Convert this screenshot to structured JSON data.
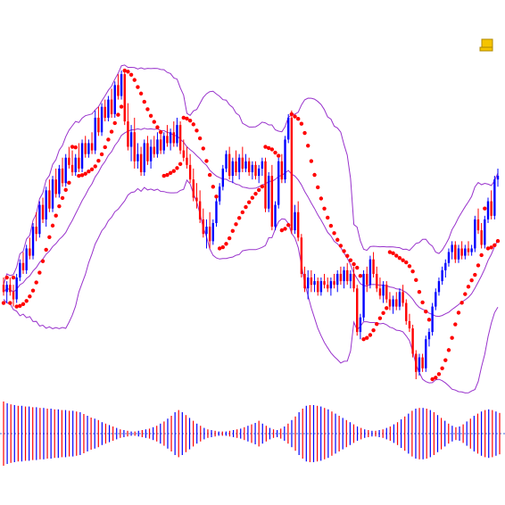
{
  "colors": {
    "background": "#ffffff",
    "up_candle": "#0000ff",
    "down_candle": "#ff0000",
    "bollinger": "#9933cc",
    "sar": "#ff0000",
    "histogram_up": "#0000ff",
    "histogram_down": "#ff0000",
    "zero_line": "#4a6bd8",
    "icon": "#f5c400"
  },
  "icons": {
    "corner_icon": "scroll-note-icon"
  },
  "chart_data": [
    {
      "type": "candlestick",
      "title": "",
      "xlabel": "",
      "ylabel": "",
      "grid": false,
      "ylim": [
        0,
        100
      ],
      "overlays": [
        "bollinger-bands",
        "parabolic-sar"
      ],
      "candles": [
        {
          "o": 26,
          "h": 28,
          "l": 23,
          "c": 24
        },
        {
          "o": 24,
          "h": 27,
          "l": 21,
          "c": 26
        },
        {
          "o": 26,
          "h": 28,
          "l": 23,
          "c": 24
        },
        {
          "o": 24,
          "h": 26,
          "l": 20,
          "c": 22
        },
        {
          "o": 22,
          "h": 29,
          "l": 21,
          "c": 28
        },
        {
          "o": 28,
          "h": 33,
          "l": 27,
          "c": 32
        },
        {
          "o": 32,
          "h": 35,
          "l": 29,
          "c": 30
        },
        {
          "o": 30,
          "h": 37,
          "l": 29,
          "c": 36
        },
        {
          "o": 36,
          "h": 39,
          "l": 33,
          "c": 34
        },
        {
          "o": 34,
          "h": 43,
          "l": 33,
          "c": 42
        },
        {
          "o": 42,
          "h": 46,
          "l": 38,
          "c": 40
        },
        {
          "o": 40,
          "h": 49,
          "l": 39,
          "c": 48
        },
        {
          "o": 48,
          "h": 50,
          "l": 43,
          "c": 44
        },
        {
          "o": 44,
          "h": 53,
          "l": 42,
          "c": 52
        },
        {
          "o": 52,
          "h": 55,
          "l": 46,
          "c": 47
        },
        {
          "o": 47,
          "h": 56,
          "l": 46,
          "c": 55
        },
        {
          "o": 55,
          "h": 58,
          "l": 50,
          "c": 51
        },
        {
          "o": 51,
          "h": 59,
          "l": 50,
          "c": 58
        },
        {
          "o": 58,
          "h": 61,
          "l": 53,
          "c": 54
        },
        {
          "o": 54,
          "h": 62,
          "l": 53,
          "c": 61
        },
        {
          "o": 61,
          "h": 64,
          "l": 58,
          "c": 59
        },
        {
          "o": 59,
          "h": 63,
          "l": 56,
          "c": 57
        },
        {
          "o": 57,
          "h": 62,
          "l": 56,
          "c": 61
        },
        {
          "o": 61,
          "h": 65,
          "l": 57,
          "c": 58
        },
        {
          "o": 58,
          "h": 66,
          "l": 57,
          "c": 65
        },
        {
          "o": 65,
          "h": 67,
          "l": 61,
          "c": 62
        },
        {
          "o": 62,
          "h": 66,
          "l": 61,
          "c": 65
        },
        {
          "o": 65,
          "h": 68,
          "l": 62,
          "c": 63
        },
        {
          "o": 63,
          "h": 74,
          "l": 62,
          "c": 72
        },
        {
          "o": 72,
          "h": 75,
          "l": 67,
          "c": 68
        },
        {
          "o": 68,
          "h": 76,
          "l": 67,
          "c": 75
        },
        {
          "o": 75,
          "h": 77,
          "l": 71,
          "c": 72
        },
        {
          "o": 72,
          "h": 78,
          "l": 71,
          "c": 77
        },
        {
          "o": 77,
          "h": 80,
          "l": 72,
          "c": 73
        },
        {
          "o": 73,
          "h": 82,
          "l": 72,
          "c": 81
        },
        {
          "o": 81,
          "h": 84,
          "l": 77,
          "c": 78
        },
        {
          "o": 78,
          "h": 85,
          "l": 77,
          "c": 84
        },
        {
          "o": 84,
          "h": 85,
          "l": 70,
          "c": 71
        },
        {
          "o": 71,
          "h": 76,
          "l": 63,
          "c": 64
        },
        {
          "o": 64,
          "h": 70,
          "l": 60,
          "c": 68
        },
        {
          "o": 68,
          "h": 72,
          "l": 58,
          "c": 60
        },
        {
          "o": 60,
          "h": 65,
          "l": 58,
          "c": 62
        },
        {
          "o": 62,
          "h": 64,
          "l": 56,
          "c": 57
        },
        {
          "o": 57,
          "h": 66,
          "l": 56,
          "c": 65
        },
        {
          "o": 65,
          "h": 67,
          "l": 59,
          "c": 60
        },
        {
          "o": 60,
          "h": 66,
          "l": 58,
          "c": 64
        },
        {
          "o": 64,
          "h": 67,
          "l": 61,
          "c": 62
        },
        {
          "o": 62,
          "h": 68,
          "l": 61,
          "c": 66
        },
        {
          "o": 66,
          "h": 68,
          "l": 62,
          "c": 63
        },
        {
          "o": 63,
          "h": 68,
          "l": 62,
          "c": 67
        },
        {
          "o": 67,
          "h": 70,
          "l": 64,
          "c": 65
        },
        {
          "o": 65,
          "h": 69,
          "l": 63,
          "c": 68
        },
        {
          "o": 68,
          "h": 71,
          "l": 64,
          "c": 65
        },
        {
          "o": 65,
          "h": 72,
          "l": 64,
          "c": 70
        },
        {
          "o": 70,
          "h": 71,
          "l": 62,
          "c": 63
        },
        {
          "o": 63,
          "h": 66,
          "l": 60,
          "c": 61
        },
        {
          "o": 61,
          "h": 64,
          "l": 58,
          "c": 59
        },
        {
          "o": 59,
          "h": 62,
          "l": 54,
          "c": 55
        },
        {
          "o": 55,
          "h": 58,
          "l": 49,
          "c": 50
        },
        {
          "o": 50,
          "h": 54,
          "l": 47,
          "c": 49
        },
        {
          "o": 49,
          "h": 52,
          "l": 43,
          "c": 44
        },
        {
          "o": 44,
          "h": 47,
          "l": 39,
          "c": 40
        },
        {
          "o": 40,
          "h": 44,
          "l": 36,
          "c": 42
        },
        {
          "o": 42,
          "h": 46,
          "l": 36,
          "c": 38
        },
        {
          "o": 38,
          "h": 44,
          "l": 37,
          "c": 43
        },
        {
          "o": 43,
          "h": 50,
          "l": 42,
          "c": 49
        },
        {
          "o": 49,
          "h": 54,
          "l": 48,
          "c": 53
        },
        {
          "o": 53,
          "h": 59,
          "l": 52,
          "c": 58
        },
        {
          "o": 58,
          "h": 63,
          "l": 57,
          "c": 62
        },
        {
          "o": 62,
          "h": 64,
          "l": 55,
          "c": 56
        },
        {
          "o": 56,
          "h": 61,
          "l": 54,
          "c": 60
        },
        {
          "o": 60,
          "h": 63,
          "l": 56,
          "c": 57
        },
        {
          "o": 57,
          "h": 62,
          "l": 55,
          "c": 61
        },
        {
          "o": 61,
          "h": 64,
          "l": 57,
          "c": 58
        },
        {
          "o": 58,
          "h": 62,
          "l": 57,
          "c": 60
        },
        {
          "o": 60,
          "h": 61,
          "l": 56,
          "c": 57
        },
        {
          "o": 57,
          "h": 60,
          "l": 55,
          "c": 59
        },
        {
          "o": 59,
          "h": 60,
          "l": 55,
          "c": 56
        },
        {
          "o": 56,
          "h": 59,
          "l": 54,
          "c": 58
        },
        {
          "o": 58,
          "h": 61,
          "l": 56,
          "c": 60
        },
        {
          "o": 60,
          "h": 61,
          "l": 46,
          "c": 47
        },
        {
          "o": 47,
          "h": 57,
          "l": 46,
          "c": 56
        },
        {
          "o": 56,
          "h": 59,
          "l": 41,
          "c": 42
        },
        {
          "o": 42,
          "h": 49,
          "l": 41,
          "c": 48
        },
        {
          "o": 48,
          "h": 61,
          "l": 47,
          "c": 60
        },
        {
          "o": 60,
          "h": 62,
          "l": 54,
          "c": 55
        },
        {
          "o": 55,
          "h": 67,
          "l": 54,
          "c": 66
        },
        {
          "o": 66,
          "h": 73,
          "l": 65,
          "c": 72
        },
        {
          "o": 72,
          "h": 74,
          "l": 40,
          "c": 41
        },
        {
          "o": 41,
          "h": 48,
          "l": 40,
          "c": 46
        },
        {
          "o": 46,
          "h": 49,
          "l": 38,
          "c": 39
        },
        {
          "o": 39,
          "h": 40,
          "l": 28,
          "c": 29
        },
        {
          "o": 29,
          "h": 31,
          "l": 24,
          "c": 25
        },
        {
          "o": 25,
          "h": 30,
          "l": 22,
          "c": 28
        },
        {
          "o": 28,
          "h": 30,
          "l": 24,
          "c": 26
        },
        {
          "o": 26,
          "h": 29,
          "l": 24,
          "c": 27
        },
        {
          "o": 27,
          "h": 28,
          "l": 23,
          "c": 24
        },
        {
          "o": 24,
          "h": 28,
          "l": 23,
          "c": 27
        },
        {
          "o": 27,
          "h": 29,
          "l": 25,
          "c": 26
        },
        {
          "o": 26,
          "h": 28,
          "l": 24,
          "c": 25
        },
        {
          "o": 25,
          "h": 28,
          "l": 23,
          "c": 27
        },
        {
          "o": 27,
          "h": 29,
          "l": 25,
          "c": 26
        },
        {
          "o": 26,
          "h": 30,
          "l": 24,
          "c": 29
        },
        {
          "o": 29,
          "h": 31,
          "l": 26,
          "c": 27
        },
        {
          "o": 27,
          "h": 31,
          "l": 25,
          "c": 30
        },
        {
          "o": 30,
          "h": 32,
          "l": 26,
          "c": 27
        },
        {
          "o": 27,
          "h": 30,
          "l": 25,
          "c": 29
        },
        {
          "o": 29,
          "h": 31,
          "l": 24,
          "c": 25
        },
        {
          "o": 25,
          "h": 26,
          "l": 12,
          "c": 13
        },
        {
          "o": 13,
          "h": 18,
          "l": 11,
          "c": 17
        },
        {
          "o": 17,
          "h": 30,
          "l": 16,
          "c": 29
        },
        {
          "o": 29,
          "h": 31,
          "l": 24,
          "c": 26
        },
        {
          "o": 26,
          "h": 34,
          "l": 25,
          "c": 33
        },
        {
          "o": 33,
          "h": 35,
          "l": 28,
          "c": 29
        },
        {
          "o": 29,
          "h": 31,
          "l": 24,
          "c": 25
        },
        {
          "o": 25,
          "h": 28,
          "l": 22,
          "c": 23
        },
        {
          "o": 23,
          "h": 27,
          "l": 21,
          "c": 26
        },
        {
          "o": 26,
          "h": 27,
          "l": 21,
          "c": 22
        },
        {
          "o": 22,
          "h": 24,
          "l": 19,
          "c": 20
        },
        {
          "o": 20,
          "h": 23,
          "l": 18,
          "c": 22
        },
        {
          "o": 22,
          "h": 24,
          "l": 19,
          "c": 20
        },
        {
          "o": 20,
          "h": 25,
          "l": 19,
          "c": 24
        },
        {
          "o": 24,
          "h": 26,
          "l": 20,
          "c": 21
        },
        {
          "o": 21,
          "h": 22,
          "l": 15,
          "c": 16
        },
        {
          "o": 16,
          "h": 18,
          "l": 13,
          "c": 14
        },
        {
          "o": 14,
          "h": 15,
          "l": 6,
          "c": 7
        },
        {
          "o": 7,
          "h": 8,
          "l": 0,
          "c": 2
        },
        {
          "o": 2,
          "h": 7,
          "l": 1,
          "c": 6
        },
        {
          "o": 6,
          "h": 7,
          "l": 2,
          "c": 3
        },
        {
          "o": 3,
          "h": 12,
          "l": 2,
          "c": 11
        },
        {
          "o": 11,
          "h": 14,
          "l": 9,
          "c": 13
        },
        {
          "o": 13,
          "h": 21,
          "l": 12,
          "c": 20
        },
        {
          "o": 20,
          "h": 25,
          "l": 19,
          "c": 24
        },
        {
          "o": 24,
          "h": 28,
          "l": 23,
          "c": 27
        },
        {
          "o": 27,
          "h": 31,
          "l": 26,
          "c": 30
        },
        {
          "o": 30,
          "h": 33,
          "l": 28,
          "c": 32
        },
        {
          "o": 32,
          "h": 36,
          "l": 31,
          "c": 35
        },
        {
          "o": 35,
          "h": 38,
          "l": 33,
          "c": 37
        },
        {
          "o": 37,
          "h": 38,
          "l": 32,
          "c": 33
        },
        {
          "o": 33,
          "h": 37,
          "l": 32,
          "c": 36
        },
        {
          "o": 36,
          "h": 38,
          "l": 33,
          "c": 34
        },
        {
          "o": 34,
          "h": 37,
          "l": 33,
          "c": 36
        },
        {
          "o": 36,
          "h": 38,
          "l": 34,
          "c": 35
        },
        {
          "o": 35,
          "h": 37,
          "l": 34,
          "c": 36
        },
        {
          "o": 36,
          "h": 45,
          "l": 35,
          "c": 44
        },
        {
          "o": 44,
          "h": 47,
          "l": 40,
          "c": 41
        },
        {
          "o": 41,
          "h": 43,
          "l": 36,
          "c": 37
        },
        {
          "o": 37,
          "h": 45,
          "l": 36,
          "c": 44
        },
        {
          "o": 44,
          "h": 50,
          "l": 43,
          "c": 49
        },
        {
          "o": 49,
          "h": 52,
          "l": 44,
          "c": 45
        },
        {
          "o": 45,
          "h": 56,
          "l": 44,
          "c": 55
        },
        {
          "o": 55,
          "h": 58,
          "l": 53,
          "c": 56
        }
      ]
    },
    {
      "type": "bar",
      "title": "",
      "xlabel": "",
      "ylabel": "",
      "grid": false,
      "ylim": [
        -1,
        1
      ],
      "zero_line": true,
      "values": [
        -0.9,
        0.85,
        -0.82,
        0.8,
        -0.78,
        0.78,
        -0.76,
        0.76,
        -0.74,
        0.74,
        -0.72,
        0.72,
        -0.7,
        0.7,
        -0.68,
        0.68,
        -0.66,
        0.66,
        -0.64,
        0.64,
        -0.62,
        0.6,
        -0.55,
        0.5,
        -0.45,
        0.42,
        -0.38,
        0.32,
        -0.28,
        0.24,
        -0.2,
        0.16,
        -0.12,
        0.1,
        -0.08,
        0.06,
        -0.06,
        0.08,
        -0.1,
        0.12,
        -0.14,
        0.18,
        -0.22,
        0.28,
        -0.34,
        0.42,
        -0.5,
        0.6,
        -0.66,
        0.6,
        -0.52,
        0.44,
        -0.36,
        0.28,
        -0.22,
        0.16,
        -0.12,
        0.1,
        -0.08,
        0.06,
        -0.06,
        0.06,
        -0.08,
        0.1,
        -0.12,
        0.14,
        -0.18,
        0.22,
        -0.26,
        0.3,
        -0.36,
        0.28,
        -0.22,
        0.16,
        -0.12,
        0.1,
        -0.14,
        0.2,
        -0.28,
        0.38,
        -0.48,
        0.6,
        -0.7,
        0.78,
        -0.8,
        0.8,
        -0.78,
        0.76,
        -0.72,
        0.68,
        -0.62,
        0.56,
        -0.5,
        0.44,
        -0.38,
        0.32,
        -0.26,
        0.2,
        -0.16,
        0.12,
        -0.1,
        0.08,
        -0.08,
        0.1,
        -0.12,
        0.16,
        -0.2,
        0.26,
        -0.32,
        0.4,
        -0.48,
        0.56,
        -0.64,
        0.7,
        -0.72,
        0.72,
        -0.7,
        0.66,
        -0.6,
        0.52,
        -0.44,
        0.36,
        -0.28,
        0.22,
        -0.18,
        0.2,
        -0.26,
        0.34,
        -0.42,
        0.5,
        -0.56,
        0.62,
        -0.66,
        0.68,
        -0.66,
        0.62,
        -0.58
      ]
    }
  ]
}
